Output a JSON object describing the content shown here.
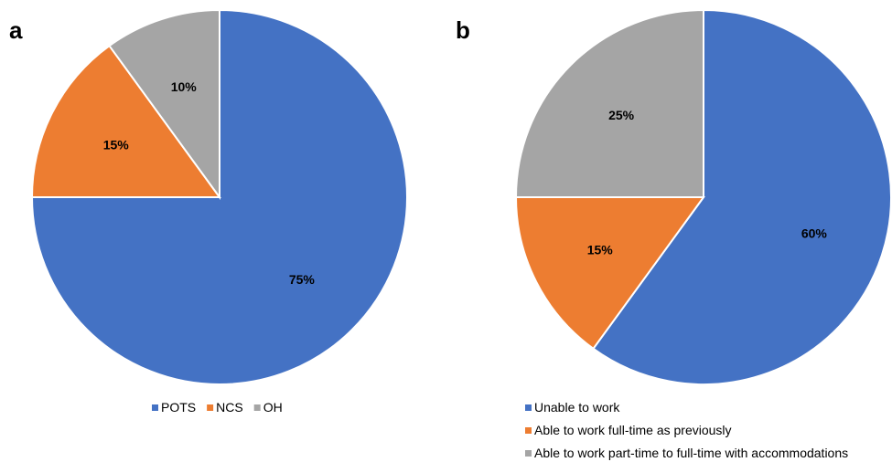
{
  "chart_data": [
    {
      "type": "pie",
      "panel_label": "a",
      "title": "",
      "legend_position": "bottom",
      "legend_layout": "horizontal",
      "slices": [
        {
          "label": "POTS",
          "value": 75,
          "value_label": "75%",
          "color": "#4472C4"
        },
        {
          "label": "NCS",
          "value": 15,
          "value_label": "15%",
          "color": "#ED7D31"
        },
        {
          "label": "OH",
          "value": 10,
          "value_label": "10%",
          "color": "#A5A5A5"
        }
      ]
    },
    {
      "type": "pie",
      "panel_label": "b",
      "title": "",
      "legend_position": "bottom",
      "legend_layout": "vertical",
      "slices": [
        {
          "label": "Unable to work",
          "value": 60,
          "value_label": "60%",
          "color": "#4472C4"
        },
        {
          "label": "Able to work full-time as previously",
          "value": 15,
          "value_label": "15%",
          "color": "#ED7D31"
        },
        {
          "label": "Able to work part-time to full-time with accommodations",
          "value": 25,
          "value_label": "25%",
          "color": "#A5A5A5"
        }
      ]
    }
  ]
}
